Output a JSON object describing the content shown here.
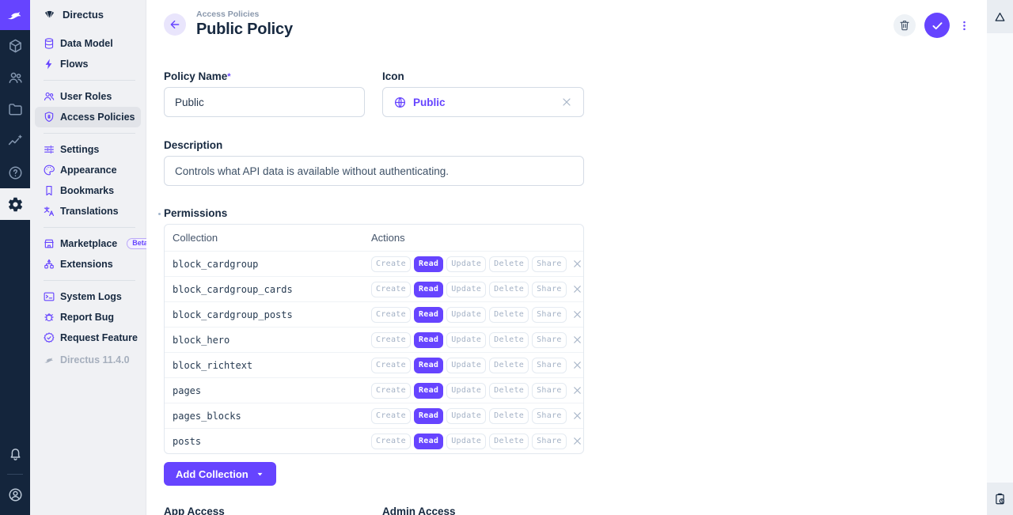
{
  "colors": {
    "accent": "#6644ff",
    "module_bar_bg": "#14253C",
    "sidebar_bg": "#F0F1F4",
    "text_navy": "#172940",
    "chip_muted": "#A4B2C6"
  },
  "module_bar": {
    "modules": [
      {
        "icon": "directus-logo"
      },
      {
        "icon": "box-content"
      },
      {
        "icon": "people"
      },
      {
        "icon": "folder"
      },
      {
        "icon": "insights"
      },
      {
        "icon": "help"
      },
      {
        "icon": "settings",
        "active": true
      }
    ],
    "bottom": [
      {
        "icon": "bell"
      },
      {
        "icon": "account-circle"
      }
    ]
  },
  "sidebar": {
    "project_name": "Directus",
    "sections": [
      {
        "items": [
          {
            "label": "Data Model",
            "icon": "database"
          },
          {
            "label": "Flows",
            "icon": "bolt"
          }
        ]
      },
      {
        "items": [
          {
            "label": "User Roles",
            "icon": "people"
          },
          {
            "label": "Access Policies",
            "icon": "shield-lock",
            "active": true
          }
        ]
      },
      {
        "items": [
          {
            "label": "Settings",
            "icon": "sliders"
          },
          {
            "label": "Appearance",
            "icon": "palette"
          },
          {
            "label": "Bookmarks",
            "icon": "bookmark"
          },
          {
            "label": "Translations",
            "icon": "translate"
          }
        ]
      },
      {
        "items": [
          {
            "label": "Marketplace",
            "icon": "storefront",
            "badge": "Beta"
          },
          {
            "label": "Extensions",
            "icon": "graph"
          }
        ]
      },
      {
        "items": [
          {
            "label": "System Logs",
            "icon": "terminal"
          },
          {
            "label": "Report Bug",
            "icon": "bug"
          },
          {
            "label": "Request Feature",
            "icon": "badge-check"
          }
        ]
      }
    ],
    "version": "Directus 11.4.0"
  },
  "header": {
    "breadcrumb": "Access Policies",
    "title": "Public Policy"
  },
  "form": {
    "policy_name": {
      "label": "Policy Name",
      "required": "*",
      "value": "Public"
    },
    "icon": {
      "label": "Icon",
      "value": "Public",
      "icon": "globe"
    },
    "description": {
      "label": "Description",
      "value": "Controls what API data is available without authenticating."
    }
  },
  "permissions": {
    "label": "Permissions",
    "columns": [
      "Collection",
      "Actions"
    ],
    "actions": [
      "Create",
      "Read",
      "Update",
      "Delete",
      "Share"
    ],
    "active_action": "Read",
    "rows": [
      "block_cardgroup",
      "block_cardgroup_cards",
      "block_cardgroup_posts",
      "block_hero",
      "block_richtext",
      "pages",
      "pages_blocks",
      "posts"
    ],
    "add_button": "Add Collection"
  },
  "access": {
    "app_label": "App Access",
    "admin_label": "Admin Access"
  },
  "right_panel": {
    "top_icon": "triangle",
    "bottom_icon": "clipboard-clock"
  }
}
